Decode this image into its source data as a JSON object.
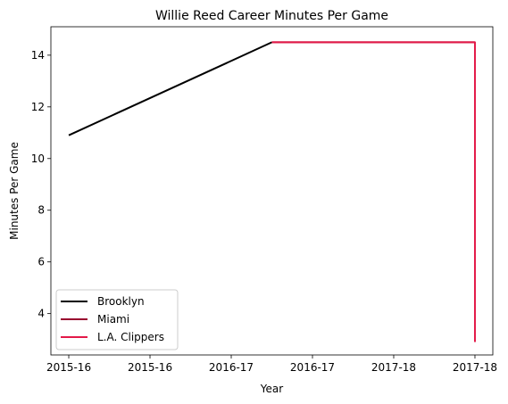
{
  "chart_data": {
    "type": "line",
    "title": "Willie Reed Career Minutes Per Game",
    "xlabel": "Year",
    "ylabel": "Minutes Per Game",
    "x_ticks": [
      "2015-16",
      "2015-16",
      "2016-17",
      "2016-17",
      "2017-18",
      "2017-18"
    ],
    "x_tick_values": [
      0,
      1,
      2,
      3,
      4,
      5
    ],
    "xlim": [
      -0.22,
      5.22
    ],
    "ylim": [
      2.4,
      15.1
    ],
    "y_ticks": [
      4,
      6,
      8,
      10,
      12,
      14
    ],
    "grid": false,
    "legend_position": "lower-left",
    "series": [
      {
        "name": "Brooklyn",
        "color": "#000000",
        "x": [
          0,
          2.5
        ],
        "y": [
          10.9,
          14.5
        ]
      },
      {
        "name": "Miami",
        "color": "#98002E",
        "x": [
          2.5,
          5
        ],
        "y": [
          14.5,
          14.5
        ]
      },
      {
        "name": "L.A. Clippers",
        "color": "#E31948",
        "x": [
          2.5,
          5,
          5
        ],
        "y": [
          14.5,
          14.5,
          2.9
        ]
      }
    ]
  }
}
